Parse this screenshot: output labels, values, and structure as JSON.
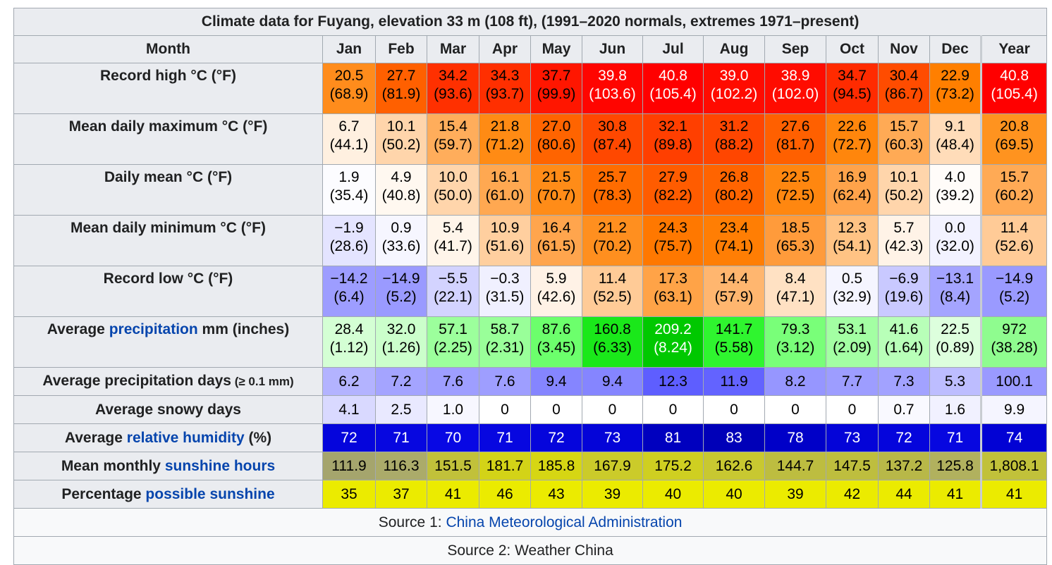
{
  "caption": "Climate data for Fuyang, elevation 33 m (108 ft), (1991–2020 normals, extremes 1971–present)",
  "month_header": "Month",
  "months": [
    "Jan",
    "Feb",
    "Mar",
    "Apr",
    "May",
    "Jun",
    "Jul",
    "Aug",
    "Sep",
    "Oct",
    "Nov",
    "Dec",
    "Year"
  ],
  "rows": [
    {
      "label_pre": "Record high °C (°F)",
      "label_link": "",
      "label_post": "",
      "label_small": "",
      "cells": [
        {
          "a": "20.5",
          "b": "(68.9)",
          "bg": "#ff8c1c",
          "fg": "#000000"
        },
        {
          "a": "27.7",
          "b": "(81.9)",
          "bg": "#ff6000",
          "fg": "#000000"
        },
        {
          "a": "34.2",
          "b": "(93.6)",
          "bg": "#ff3000",
          "fg": "#000000"
        },
        {
          "a": "34.3",
          "b": "(93.7)",
          "bg": "#ff2f00",
          "fg": "#000000"
        },
        {
          "a": "37.7",
          "b": "(99.9)",
          "bg": "#ff1600",
          "fg": "#000000"
        },
        {
          "a": "39.8",
          "b": "(103.6)",
          "bg": "#ff0500",
          "fg": "#ffffff"
        },
        {
          "a": "40.8",
          "b": "(105.4)",
          "bg": "#ff0000",
          "fg": "#ffffff"
        },
        {
          "a": "39.0",
          "b": "(102.2)",
          "bg": "#ff0b00",
          "fg": "#ffffff"
        },
        {
          "a": "38.9",
          "b": "(102.0)",
          "bg": "#ff0c00",
          "fg": "#ffffff"
        },
        {
          "a": "34.7",
          "b": "(94.5)",
          "bg": "#ff2b00",
          "fg": "#000000"
        },
        {
          "a": "30.4",
          "b": "(86.7)",
          "bg": "#ff4c00",
          "fg": "#000000"
        },
        {
          "a": "22.9",
          "b": "(73.2)",
          "bg": "#ff7f00",
          "fg": "#000000"
        },
        {
          "a": "40.8",
          "b": "(105.4)",
          "bg": "#ff0000",
          "fg": "#ffffff"
        }
      ]
    },
    {
      "label_pre": "Mean daily maximum °C (°F)",
      "label_link": "",
      "label_post": "",
      "label_small": "",
      "cells": [
        {
          "a": "6.7",
          "b": "(44.1)",
          "bg": "#fff0e0",
          "fg": "#000000"
        },
        {
          "a": "10.1",
          "b": "(50.2)",
          "bg": "#ffd5ab",
          "fg": "#000000"
        },
        {
          "a": "15.4",
          "b": "(59.7)",
          "bg": "#ffad5b",
          "fg": "#000000"
        },
        {
          "a": "21.8",
          "b": "(71.2)",
          "bg": "#ff8b14",
          "fg": "#000000"
        },
        {
          "a": "27.0",
          "b": "(80.6)",
          "bg": "#ff6400",
          "fg": "#000000"
        },
        {
          "a": "30.8",
          "b": "(87.4)",
          "bg": "#ff4800",
          "fg": "#000000"
        },
        {
          "a": "32.1",
          "b": "(89.8)",
          "bg": "#ff3f00",
          "fg": "#000000"
        },
        {
          "a": "31.2",
          "b": "(88.2)",
          "bg": "#ff4600",
          "fg": "#000000"
        },
        {
          "a": "27.6",
          "b": "(81.7)",
          "bg": "#ff6000",
          "fg": "#000000"
        },
        {
          "a": "22.6",
          "b": "(72.7)",
          "bg": "#ff860c",
          "fg": "#000000"
        },
        {
          "a": "15.7",
          "b": "(60.3)",
          "bg": "#ffaa55",
          "fg": "#000000"
        },
        {
          "a": "9.1",
          "b": "(48.4)",
          "bg": "#ffdcb9",
          "fg": "#000000"
        },
        {
          "a": "20.8",
          "b": "(69.5)",
          "bg": "#ff931f",
          "fg": "#000000"
        }
      ]
    },
    {
      "label_pre": "Daily mean °C (°F)",
      "label_link": "",
      "label_post": "",
      "label_small": "",
      "cells": [
        {
          "a": "1.9",
          "b": "(35.4)",
          "bg": "#fcfcff",
          "fg": "#000000"
        },
        {
          "a": "4.9",
          "b": "(40.8)",
          "bg": "#fff8f0",
          "fg": "#000000"
        },
        {
          "a": "10.0",
          "b": "(50.0)",
          "bg": "#ffd5ab",
          "fg": "#000000"
        },
        {
          "a": "16.1",
          "b": "(61.0)",
          "bg": "#ffa851",
          "fg": "#000000"
        },
        {
          "a": "21.5",
          "b": "(70.7)",
          "bg": "#ff8c18",
          "fg": "#000000"
        },
        {
          "a": "25.7",
          "b": "(78.3)",
          "bg": "#ff6c00",
          "fg": "#000000"
        },
        {
          "a": "27.9",
          "b": "(82.2)",
          "bg": "#ff5c00",
          "fg": "#000000"
        },
        {
          "a": "26.8",
          "b": "(80.2)",
          "bg": "#ff6400",
          "fg": "#000000"
        },
        {
          "a": "22.5",
          "b": "(72.5)",
          "bg": "#ff8710",
          "fg": "#000000"
        },
        {
          "a": "16.9",
          "b": "(62.4)",
          "bg": "#ffa34a",
          "fg": "#000000"
        },
        {
          "a": "10.1",
          "b": "(50.2)",
          "bg": "#ffd5ab",
          "fg": "#000000"
        },
        {
          "a": "4.0",
          "b": "(39.2)",
          "bg": "#fffcf9",
          "fg": "#000000"
        },
        {
          "a": "15.7",
          "b": "(60.2)",
          "bg": "#ffaa55",
          "fg": "#000000"
        }
      ]
    },
    {
      "label_pre": "Mean daily minimum °C (°F)",
      "label_link": "",
      "label_post": "",
      "label_small": "",
      "cells": [
        {
          "a": "−1.9",
          "b": "(28.6)",
          "bg": "#e4e4ff",
          "fg": "#000000"
        },
        {
          "a": "0.9",
          "b": "(33.6)",
          "bg": "#f6f6ff",
          "fg": "#000000"
        },
        {
          "a": "5.4",
          "b": "(41.7)",
          "bg": "#fff5ea",
          "fg": "#000000"
        },
        {
          "a": "10.9",
          "b": "(51.6)",
          "bg": "#ffcf9f",
          "fg": "#000000"
        },
        {
          "a": "16.4",
          "b": "(61.5)",
          "bg": "#ffa54d",
          "fg": "#000000"
        },
        {
          "a": "21.2",
          "b": "(70.2)",
          "bg": "#ff8f1f",
          "fg": "#000000"
        },
        {
          "a": "24.3",
          "b": "(75.7)",
          "bg": "#ff7800",
          "fg": "#000000"
        },
        {
          "a": "23.4",
          "b": "(74.1)",
          "bg": "#ff7e04",
          "fg": "#000000"
        },
        {
          "a": "18.5",
          "b": "(65.3)",
          "bg": "#ff9b3b",
          "fg": "#000000"
        },
        {
          "a": "12.3",
          "b": "(54.1)",
          "bg": "#ffc384",
          "fg": "#000000"
        },
        {
          "a": "5.7",
          "b": "(42.3)",
          "bg": "#fff3e7",
          "fg": "#000000"
        },
        {
          "a": "0.0",
          "b": "(32.0)",
          "bg": "#f2f2ff",
          "fg": "#000000"
        },
        {
          "a": "11.4",
          "b": "(52.6)",
          "bg": "#ffcb97",
          "fg": "#000000"
        }
      ]
    },
    {
      "label_pre": "Record low °C (°F)",
      "label_link": "",
      "label_post": "",
      "label_small": "",
      "cells": [
        {
          "a": "−14.2",
          "b": "(6.4)",
          "bg": "#9d9dff",
          "fg": "#000000"
        },
        {
          "a": "−14.9",
          "b": "(5.2)",
          "bg": "#9a9aff",
          "fg": "#000000"
        },
        {
          "a": "−5.5",
          "b": "(22.1)",
          "bg": "#d3d3ff",
          "fg": "#000000"
        },
        {
          "a": "−0.3",
          "b": "(31.5)",
          "bg": "#f0f0ff",
          "fg": "#000000"
        },
        {
          "a": "5.9",
          "b": "(42.6)",
          "bg": "#fff2e6",
          "fg": "#000000"
        },
        {
          "a": "11.4",
          "b": "(52.5)",
          "bg": "#ffcb97",
          "fg": "#000000"
        },
        {
          "a": "17.3",
          "b": "(63.1)",
          "bg": "#ffa347",
          "fg": "#000000"
        },
        {
          "a": "14.4",
          "b": "(57.9)",
          "bg": "#ffb66f",
          "fg": "#000000"
        },
        {
          "a": "8.4",
          "b": "(47.1)",
          "bg": "#ffe1c3",
          "fg": "#000000"
        },
        {
          "a": "0.5",
          "b": "(32.9)",
          "bg": "#f5f5ff",
          "fg": "#000000"
        },
        {
          "a": "−6.9",
          "b": "(19.6)",
          "bg": "#c9c9ff",
          "fg": "#000000"
        },
        {
          "a": "−13.1",
          "b": "(8.4)",
          "bg": "#a4a4ff",
          "fg": "#000000"
        },
        {
          "a": "−14.9",
          "b": "(5.2)",
          "bg": "#9a9aff",
          "fg": "#000000"
        }
      ]
    },
    {
      "label_pre": "Average ",
      "label_link": "precipitation",
      "label_post": " mm (inches)",
      "label_small": "",
      "cells": [
        {
          "a": "28.4",
          "b": "(1.12)",
          "bg": "#d4ffd4",
          "fg": "#000000"
        },
        {
          "a": "32.0",
          "b": "(1.26)",
          "bg": "#cbffcb",
          "fg": "#000000"
        },
        {
          "a": "57.1",
          "b": "(2.25)",
          "bg": "#9cff9c",
          "fg": "#000000"
        },
        {
          "a": "58.7",
          "b": "(2.31)",
          "bg": "#99ff99",
          "fg": "#000000"
        },
        {
          "a": "87.6",
          "b": "(3.45)",
          "bg": "#6cff6c",
          "fg": "#000000"
        },
        {
          "a": "160.8",
          "b": "(6.33)",
          "bg": "#1ae81a",
          "fg": "#000000"
        },
        {
          "a": "209.2",
          "b": "(8.24)",
          "bg": "#00c800",
          "fg": "#ffffff"
        },
        {
          "a": "141.7",
          "b": "(5.58)",
          "bg": "#2ff52f",
          "fg": "#000000"
        },
        {
          "a": "79.3",
          "b": "(3.12)",
          "bg": "#79ff79",
          "fg": "#000000"
        },
        {
          "a": "53.1",
          "b": "(2.09)",
          "bg": "#a3ffa3",
          "fg": "#000000"
        },
        {
          "a": "41.6",
          "b": "(1.64)",
          "bg": "#b8ffb8",
          "fg": "#000000"
        },
        {
          "a": "22.5",
          "b": "(0.89)",
          "bg": "#ddffdd",
          "fg": "#000000"
        },
        {
          "a": "972",
          "b": "(38.28)",
          "bg": "#8ffc8f",
          "fg": "#000000"
        }
      ]
    },
    {
      "label_pre": "Average precipitation days",
      "label_link": "",
      "label_post": "",
      "label_small": " (≥ 0.1 mm)",
      "cells": [
        {
          "a": "6.2",
          "b": "",
          "bg": "#b3b3ff",
          "fg": "#000000"
        },
        {
          "a": "7.2",
          "b": "",
          "bg": "#a4a4ff",
          "fg": "#000000"
        },
        {
          "a": "7.6",
          "b": "",
          "bg": "#9e9eff",
          "fg": "#000000"
        },
        {
          "a": "7.6",
          "b": "",
          "bg": "#9e9eff",
          "fg": "#000000"
        },
        {
          "a": "9.4",
          "b": "",
          "bg": "#8585ff",
          "fg": "#000000"
        },
        {
          "a": "9.4",
          "b": "",
          "bg": "#8585ff",
          "fg": "#000000"
        },
        {
          "a": "12.3",
          "b": "",
          "bg": "#5e5eff",
          "fg": "#000000"
        },
        {
          "a": "11.9",
          "b": "",
          "bg": "#6363ff",
          "fg": "#000000"
        },
        {
          "a": "8.2",
          "b": "",
          "bg": "#9696ff",
          "fg": "#000000"
        },
        {
          "a": "7.7",
          "b": "",
          "bg": "#9d9dff",
          "fg": "#000000"
        },
        {
          "a": "7.3",
          "b": "",
          "bg": "#a2a2ff",
          "fg": "#000000"
        },
        {
          "a": "5.3",
          "b": "",
          "bg": "#bdbdff",
          "fg": "#000000"
        },
        {
          "a": "100.1",
          "b": "",
          "bg": "#9a9aff",
          "fg": "#000000"
        }
      ]
    },
    {
      "label_pre": "Average snowy days",
      "label_link": "",
      "label_post": "",
      "label_small": "",
      "cells": [
        {
          "a": "4.1",
          "b": "",
          "bg": "#d9d9ff",
          "fg": "#000000"
        },
        {
          "a": "2.5",
          "b": "",
          "bg": "#e9e9ff",
          "fg": "#000000"
        },
        {
          "a": "1.0",
          "b": "",
          "bg": "#f7f7ff",
          "fg": "#000000"
        },
        {
          "a": "0",
          "b": "",
          "bg": "#ffffff",
          "fg": "#000000"
        },
        {
          "a": "0",
          "b": "",
          "bg": "#ffffff",
          "fg": "#000000"
        },
        {
          "a": "0",
          "b": "",
          "bg": "#ffffff",
          "fg": "#000000"
        },
        {
          "a": "0",
          "b": "",
          "bg": "#ffffff",
          "fg": "#000000"
        },
        {
          "a": "0",
          "b": "",
          "bg": "#ffffff",
          "fg": "#000000"
        },
        {
          "a": "0",
          "b": "",
          "bg": "#ffffff",
          "fg": "#000000"
        },
        {
          "a": "0",
          "b": "",
          "bg": "#ffffff",
          "fg": "#000000"
        },
        {
          "a": "0.7",
          "b": "",
          "bg": "#f9f9ff",
          "fg": "#000000"
        },
        {
          "a": "1.6",
          "b": "",
          "bg": "#f1f1ff",
          "fg": "#000000"
        },
        {
          "a": "9.9",
          "b": "",
          "bg": "#f5f5ff",
          "fg": "#000000"
        }
      ]
    },
    {
      "label_pre": "Average ",
      "label_link": "relative humidity",
      "label_post": " (%)",
      "label_small": "",
      "cells": [
        {
          "a": "72",
          "b": "",
          "bg": "#0505dc",
          "fg": "#ffffff"
        },
        {
          "a": "71",
          "b": "",
          "bg": "#0707e0",
          "fg": "#ffffff"
        },
        {
          "a": "70",
          "b": "",
          "bg": "#0808e4",
          "fg": "#ffffff"
        },
        {
          "a": "71",
          "b": "",
          "bg": "#0707e0",
          "fg": "#ffffff"
        },
        {
          "a": "72",
          "b": "",
          "bg": "#0505dc",
          "fg": "#ffffff"
        },
        {
          "a": "73",
          "b": "",
          "bg": "#0404d8",
          "fg": "#ffffff"
        },
        {
          "a": "81",
          "b": "",
          "bg": "#0000bf",
          "fg": "#ffffff"
        },
        {
          "a": "83",
          "b": "",
          "bg": "#0000b8",
          "fg": "#ffffff"
        },
        {
          "a": "78",
          "b": "",
          "bg": "#0000c8",
          "fg": "#ffffff"
        },
        {
          "a": "73",
          "b": "",
          "bg": "#0404d8",
          "fg": "#ffffff"
        },
        {
          "a": "72",
          "b": "",
          "bg": "#0505dc",
          "fg": "#ffffff"
        },
        {
          "a": "71",
          "b": "",
          "bg": "#0707e0",
          "fg": "#ffffff"
        },
        {
          "a": "74",
          "b": "",
          "bg": "#0202d4",
          "fg": "#ffffff"
        }
      ]
    },
    {
      "label_pre": "Mean monthly ",
      "label_link": "sunshine hours",
      "label_post": "",
      "label_small": "",
      "cells": [
        {
          "a": "111.9",
          "b": "",
          "bg": "#a5a56d",
          "fg": "#000000"
        },
        {
          "a": "116.3",
          "b": "",
          "bg": "#abab6a",
          "fg": "#000000"
        },
        {
          "a": "151.5",
          "b": "",
          "bg": "#c1c13a",
          "fg": "#000000"
        },
        {
          "a": "181.7",
          "b": "",
          "bg": "#d3d317",
          "fg": "#000000"
        },
        {
          "a": "185.8",
          "b": "",
          "bg": "#d6d613",
          "fg": "#000000"
        },
        {
          "a": "167.9",
          "b": "",
          "bg": "#cbcb2a",
          "fg": "#000000"
        },
        {
          "a": "175.2",
          "b": "",
          "bg": "#cfcf21",
          "fg": "#000000"
        },
        {
          "a": "162.6",
          "b": "",
          "bg": "#c8c831",
          "fg": "#000000"
        },
        {
          "a": "144.7",
          "b": "",
          "bg": "#bdbd40",
          "fg": "#000000"
        },
        {
          "a": "147.5",
          "b": "",
          "bg": "#bebe3e",
          "fg": "#000000"
        },
        {
          "a": "137.2",
          "b": "",
          "bg": "#b8b848",
          "fg": "#000000"
        },
        {
          "a": "125.8",
          "b": "",
          "bg": "#b1b15e",
          "fg": "#000000"
        },
        {
          "a": "1,808.1",
          "b": "",
          "bg": "#c1c13a",
          "fg": "#000000"
        }
      ]
    },
    {
      "label_pre": "Percentage ",
      "label_link": "possible sunshine",
      "label_post": "",
      "label_small": "",
      "cells": [
        {
          "a": "35",
          "b": "",
          "bg": "#ebeb00",
          "fg": "#000000"
        },
        {
          "a": "37",
          "b": "",
          "bg": "#ebeb00",
          "fg": "#000000"
        },
        {
          "a": "41",
          "b": "",
          "bg": "#ebeb00",
          "fg": "#000000"
        },
        {
          "a": "46",
          "b": "",
          "bg": "#ebeb00",
          "fg": "#000000"
        },
        {
          "a": "43",
          "b": "",
          "bg": "#ebeb00",
          "fg": "#000000"
        },
        {
          "a": "39",
          "b": "",
          "bg": "#ebeb00",
          "fg": "#000000"
        },
        {
          "a": "40",
          "b": "",
          "bg": "#ebeb00",
          "fg": "#000000"
        },
        {
          "a": "40",
          "b": "",
          "bg": "#ebeb00",
          "fg": "#000000"
        },
        {
          "a": "39",
          "b": "",
          "bg": "#ebeb00",
          "fg": "#000000"
        },
        {
          "a": "42",
          "b": "",
          "bg": "#ebeb00",
          "fg": "#000000"
        },
        {
          "a": "44",
          "b": "",
          "bg": "#ebeb00",
          "fg": "#000000"
        },
        {
          "a": "41",
          "b": "",
          "bg": "#ebeb00",
          "fg": "#000000"
        },
        {
          "a": "41",
          "b": "",
          "bg": "#ebeb00",
          "fg": "#000000"
        }
      ]
    }
  ],
  "sources": [
    {
      "pre": "Source 1: ",
      "link": "China Meteorological Administration"
    },
    {
      "pre": "Source 2: Weather China",
      "link": ""
    }
  ],
  "link_color": "#0645ad"
}
